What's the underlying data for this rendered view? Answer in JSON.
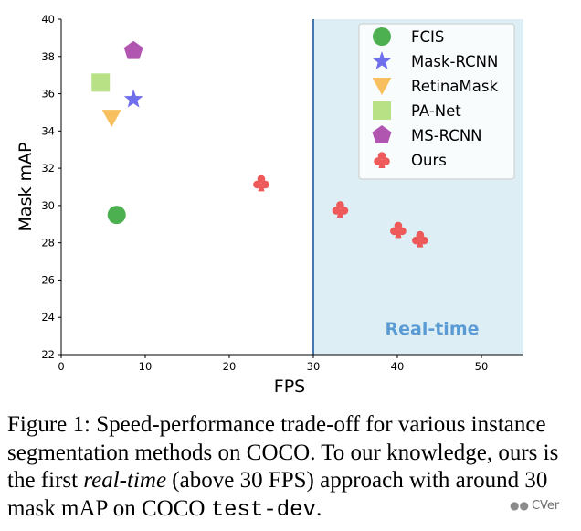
{
  "chart_data": {
    "type": "scatter",
    "xlabel": "FPS",
    "ylabel": "Mask mAP",
    "xlim": [
      0,
      55
    ],
    "ylim": [
      22,
      40
    ],
    "xticks": [
      "0",
      "10",
      "20",
      "30",
      "40",
      "50"
    ],
    "yticks": [
      "22",
      "24",
      "26",
      "28",
      "30",
      "32",
      "34",
      "36",
      "38",
      "40"
    ],
    "grid": false,
    "legend_position": "top-right",
    "region": {
      "x_start": 30,
      "x_end": 55,
      "label": "Real-time",
      "color": "#add8e6",
      "label_color": "#5b9bd5"
    },
    "series": [
      {
        "name": "FCIS",
        "marker": "circle",
        "color": "#4caf50",
        "points": [
          {
            "x": 6.6,
            "y": 29.5
          }
        ]
      },
      {
        "name": "Mask-RCNN",
        "marker": "star",
        "color": "#6f6fec",
        "points": [
          {
            "x": 8.6,
            "y": 35.7
          }
        ]
      },
      {
        "name": "RetinaMask",
        "marker": "triangle-down",
        "color": "#f7bf5e",
        "points": [
          {
            "x": 6.0,
            "y": 34.7
          }
        ]
      },
      {
        "name": "PA-Net",
        "marker": "square",
        "color": "#b8e186",
        "points": [
          {
            "x": 4.7,
            "y": 36.6
          }
        ]
      },
      {
        "name": "MS-RCNN",
        "marker": "pentagon",
        "color": "#b055b0",
        "points": [
          {
            "x": 8.6,
            "y": 38.3
          }
        ]
      },
      {
        "name": "Ours",
        "marker": "club",
        "color": "#ee5a5a",
        "points": [
          {
            "x": 23.8,
            "y": 31.2
          },
          {
            "x": 33.2,
            "y": 29.8
          },
          {
            "x": 40.1,
            "y": 28.7
          },
          {
            "x": 42.7,
            "y": 28.2
          }
        ]
      }
    ]
  },
  "caption": {
    "prefix": "Figure 1: Speed-performance trade-off for various instance segmentation methods on COCO. To our knowledge, ours is the first ",
    "emphasis": "real-time",
    "middle": " (above 30 FPS) approach with around 30 mask mAP on COCO ",
    "code": "test-dev",
    "suffix": "."
  },
  "watermark": {
    "text": "CVer",
    "icon": "wechat-icon"
  }
}
